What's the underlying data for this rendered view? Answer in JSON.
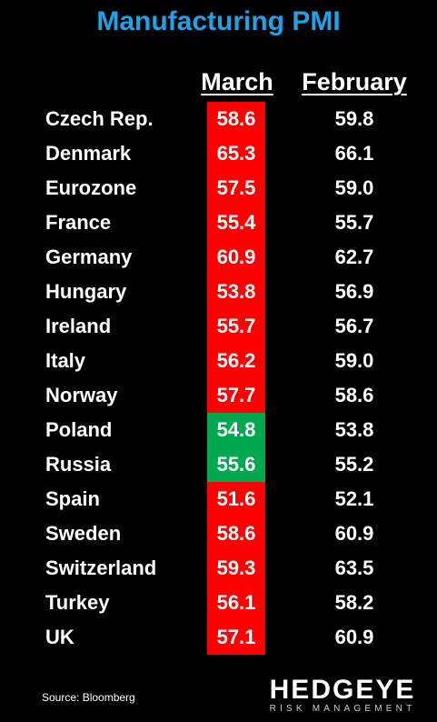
{
  "chart_data": {
    "type": "table",
    "title": "Manufacturing PMI",
    "columns": [
      "March",
      "February"
    ],
    "colors": {
      "decline": "#ff0000",
      "increase": "#00a84f",
      "title": "#1fa3e8"
    },
    "rows": [
      {
        "country": "Czech Rep.",
        "march": "58.6",
        "february": "59.8"
      },
      {
        "country": "Denmark",
        "march": "65.3",
        "february": "66.1"
      },
      {
        "country": "Eurozone",
        "march": "57.5",
        "february": "59.0"
      },
      {
        "country": "France",
        "march": "55.4",
        "february": "55.7"
      },
      {
        "country": "Germany",
        "march": "60.9",
        "february": "62.7"
      },
      {
        "country": "Hungary",
        "march": "53.8",
        "february": "56.9"
      },
      {
        "country": "Ireland",
        "march": "55.7",
        "february": "56.7"
      },
      {
        "country": "Italy",
        "march": "56.2",
        "february": "59.0"
      },
      {
        "country": "Norway",
        "march": "57.7",
        "february": "58.6"
      },
      {
        "country": "Poland",
        "march": "54.8",
        "february": "53.8"
      },
      {
        "country": "Russia",
        "march": "55.6",
        "february": "55.2"
      },
      {
        "country": "Spain",
        "march": "51.6",
        "february": "52.1"
      },
      {
        "country": "Sweden",
        "march": "58.6",
        "february": "60.9"
      },
      {
        "country": "Switzerland",
        "march": "59.3",
        "february": "63.5"
      },
      {
        "country": "Turkey",
        "march": "56.1",
        "february": "58.2"
      },
      {
        "country": "UK",
        "march": "57.1",
        "february": "60.9"
      }
    ]
  },
  "footer": {
    "source": "Source: Bloomberg",
    "logo_main": "HEDGEYE",
    "logo_sub": "RISK MANAGEMENT"
  }
}
